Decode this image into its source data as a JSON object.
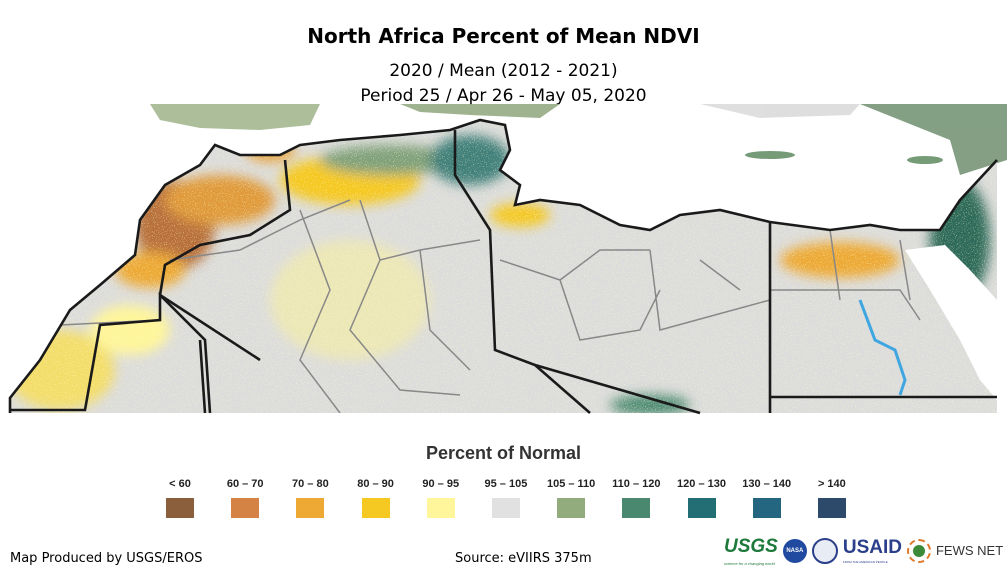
{
  "title": "North Africa Percent of Mean NDVI",
  "subtitle1": "2020 / Mean (2012 - 2021)",
  "subtitle2": "Period 25 / Apr 26 - May 05, 2020",
  "legend": {
    "title": "Percent of Normal",
    "items": [
      {
        "label": "< 60",
        "color": "#8B5E3C"
      },
      {
        "label": "60 – 70",
        "color": "#D58345"
      },
      {
        "label": "70 – 80",
        "color": "#EDA934"
      },
      {
        "label": "80 – 90",
        "color": "#F5C822"
      },
      {
        "label": "90 – 95",
        "color": "#FFF59A"
      },
      {
        "label": "95 – 105",
        "color": "#E1E1E1"
      },
      {
        "label": "105 – 110",
        "color": "#92AC7E"
      },
      {
        "label": "110 – 120",
        "color": "#4A8870"
      },
      {
        "label": "120 – 130",
        "color": "#236E74"
      },
      {
        "label": "130 – 140",
        "color": "#246580"
      },
      {
        "label": "> 140",
        "color": "#2E4A6A"
      }
    ]
  },
  "footer": {
    "producer": "Map Produced by USGS/EROS",
    "source": "Source: eVIIRS 375m"
  },
  "logos": {
    "usgs": "USGS",
    "usgs_tagline": "science for a changing world",
    "nasa": "NASA",
    "usaid": "USAID",
    "usaid_tagline": "FROM THE AMERICAN PEOPLE",
    "fews": "FEWS NET"
  }
}
